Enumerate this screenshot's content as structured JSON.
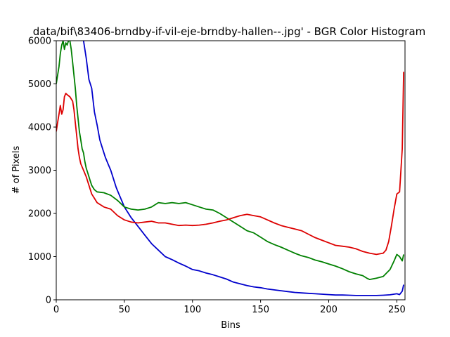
{
  "chart_data": {
    "type": "line",
    "title": "data/bif\\83406-brndby-if-vil-eje-brndby-hallen--.jpg' - BGR Color Histogram",
    "xlabel": "Bins",
    "ylabel": "# of Pixels",
    "xlim": [
      0,
      256
    ],
    "ylim": [
      0,
      6000
    ],
    "xticks": [
      0,
      50,
      100,
      150,
      200,
      250
    ],
    "yticks": [
      0,
      1000,
      2000,
      3000,
      4000,
      5000,
      6000
    ],
    "grid": false,
    "legend": "none",
    "series": [
      {
        "color": "#0000cc",
        "points": [
          [
            20,
            6000
          ],
          [
            22,
            5600
          ],
          [
            24,
            5100
          ],
          [
            26,
            4900
          ],
          [
            28,
            4350
          ],
          [
            30,
            4050
          ],
          [
            32,
            3700
          ],
          [
            34,
            3500
          ],
          [
            36,
            3300
          ],
          [
            38,
            3150
          ],
          [
            40,
            3000
          ],
          [
            42,
            2800
          ],
          [
            44,
            2600
          ],
          [
            46,
            2450
          ],
          [
            48,
            2300
          ],
          [
            50,
            2150
          ],
          [
            55,
            1900
          ],
          [
            60,
            1700
          ],
          [
            65,
            1500
          ],
          [
            70,
            1300
          ],
          [
            75,
            1150
          ],
          [
            80,
            1000
          ],
          [
            85,
            930
          ],
          [
            90,
            850
          ],
          [
            95,
            780
          ],
          [
            100,
            700
          ],
          [
            105,
            670
          ],
          [
            110,
            620
          ],
          [
            115,
            580
          ],
          [
            120,
            530
          ],
          [
            125,
            480
          ],
          [
            130,
            410
          ],
          [
            135,
            370
          ],
          [
            140,
            330
          ],
          [
            145,
            300
          ],
          [
            150,
            280
          ],
          [
            155,
            250
          ],
          [
            160,
            230
          ],
          [
            165,
            210
          ],
          [
            170,
            190
          ],
          [
            175,
            170
          ],
          [
            180,
            160
          ],
          [
            185,
            150
          ],
          [
            190,
            140
          ],
          [
            195,
            130
          ],
          [
            200,
            120
          ],
          [
            205,
            110
          ],
          [
            210,
            110
          ],
          [
            215,
            105
          ],
          [
            220,
            100
          ],
          [
            225,
            100
          ],
          [
            230,
            100
          ],
          [
            235,
            100
          ],
          [
            240,
            105
          ],
          [
            245,
            115
          ],
          [
            250,
            140
          ],
          [
            252,
            120
          ],
          [
            254,
            200
          ],
          [
            255,
            350
          ]
        ]
      },
      {
        "color": "#008000",
        "points": [
          [
            0,
            5000
          ],
          [
            1,
            5200
          ],
          [
            2,
            5400
          ],
          [
            3,
            5700
          ],
          [
            4,
            5900
          ],
          [
            5,
            6000
          ],
          [
            6,
            5800
          ],
          [
            7,
            5950
          ],
          [
            8,
            5900
          ],
          [
            9,
            6000
          ],
          [
            10,
            6000
          ],
          [
            11,
            5800
          ],
          [
            12,
            5500
          ],
          [
            13,
            5200
          ],
          [
            14,
            4900
          ],
          [
            15,
            4500
          ],
          [
            16,
            4200
          ],
          [
            17,
            3900
          ],
          [
            18,
            3700
          ],
          [
            19,
            3500
          ],
          [
            20,
            3400
          ],
          [
            21,
            3200
          ],
          [
            22,
            3050
          ],
          [
            23,
            2950
          ],
          [
            24,
            2850
          ],
          [
            25,
            2750
          ],
          [
            26,
            2650
          ],
          [
            27,
            2600
          ],
          [
            28,
            2550
          ],
          [
            30,
            2500
          ],
          [
            35,
            2480
          ],
          [
            40,
            2420
          ],
          [
            45,
            2300
          ],
          [
            50,
            2150
          ],
          [
            55,
            2100
          ],
          [
            60,
            2080
          ],
          [
            65,
            2100
          ],
          [
            70,
            2150
          ],
          [
            75,
            2250
          ],
          [
            80,
            2230
          ],
          [
            85,
            2250
          ],
          [
            90,
            2230
          ],
          [
            95,
            2250
          ],
          [
            100,
            2200
          ],
          [
            105,
            2150
          ],
          [
            110,
            2100
          ],
          [
            115,
            2080
          ],
          [
            120,
            2000
          ],
          [
            125,
            1900
          ],
          [
            130,
            1800
          ],
          [
            135,
            1700
          ],
          [
            140,
            1600
          ],
          [
            145,
            1550
          ],
          [
            150,
            1450
          ],
          [
            155,
            1350
          ],
          [
            160,
            1280
          ],
          [
            165,
            1220
          ],
          [
            170,
            1150
          ],
          [
            175,
            1080
          ],
          [
            180,
            1020
          ],
          [
            185,
            980
          ],
          [
            190,
            920
          ],
          [
            195,
            880
          ],
          [
            200,
            830
          ],
          [
            205,
            780
          ],
          [
            210,
            720
          ],
          [
            215,
            650
          ],
          [
            220,
            600
          ],
          [
            225,
            560
          ],
          [
            228,
            500
          ],
          [
            230,
            470
          ],
          [
            235,
            500
          ],
          [
            240,
            540
          ],
          [
            245,
            700
          ],
          [
            248,
            900
          ],
          [
            250,
            1050
          ],
          [
            252,
            1000
          ],
          [
            254,
            900
          ],
          [
            255,
            1050
          ]
        ]
      },
      {
        "color": "#dd0000",
        "points": [
          [
            0,
            3900
          ],
          [
            1,
            4100
          ],
          [
            2,
            4300
          ],
          [
            3,
            4500
          ],
          [
            4,
            4300
          ],
          [
            5,
            4400
          ],
          [
            6,
            4700
          ],
          [
            7,
            4780
          ],
          [
            8,
            4750
          ],
          [
            10,
            4700
          ],
          [
            12,
            4600
          ],
          [
            13,
            4400
          ],
          [
            14,
            4100
          ],
          [
            15,
            3800
          ],
          [
            16,
            3500
          ],
          [
            17,
            3300
          ],
          [
            18,
            3150
          ],
          [
            20,
            3000
          ],
          [
            22,
            2850
          ],
          [
            24,
            2650
          ],
          [
            26,
            2450
          ],
          [
            28,
            2350
          ],
          [
            30,
            2250
          ],
          [
            35,
            2150
          ],
          [
            40,
            2100
          ],
          [
            45,
            1950
          ],
          [
            50,
            1850
          ],
          [
            55,
            1800
          ],
          [
            60,
            1780
          ],
          [
            65,
            1800
          ],
          [
            70,
            1820
          ],
          [
            75,
            1780
          ],
          [
            80,
            1780
          ],
          [
            85,
            1750
          ],
          [
            90,
            1720
          ],
          [
            95,
            1730
          ],
          [
            100,
            1720
          ],
          [
            105,
            1730
          ],
          [
            110,
            1750
          ],
          [
            115,
            1780
          ],
          [
            120,
            1820
          ],
          [
            125,
            1850
          ],
          [
            130,
            1900
          ],
          [
            135,
            1950
          ],
          [
            140,
            1980
          ],
          [
            145,
            1950
          ],
          [
            150,
            1920
          ],
          [
            155,
            1850
          ],
          [
            160,
            1780
          ],
          [
            165,
            1720
          ],
          [
            170,
            1680
          ],
          [
            175,
            1640
          ],
          [
            180,
            1600
          ],
          [
            185,
            1520
          ],
          [
            190,
            1440
          ],
          [
            195,
            1380
          ],
          [
            200,
            1320
          ],
          [
            205,
            1260
          ],
          [
            210,
            1240
          ],
          [
            215,
            1220
          ],
          [
            220,
            1180
          ],
          [
            225,
            1120
          ],
          [
            230,
            1080
          ],
          [
            235,
            1050
          ],
          [
            240,
            1080
          ],
          [
            242,
            1150
          ],
          [
            244,
            1350
          ],
          [
            246,
            1700
          ],
          [
            248,
            2100
          ],
          [
            250,
            2450
          ],
          [
            252,
            2500
          ],
          [
            254,
            3500
          ],
          [
            255,
            5280
          ]
        ]
      }
    ]
  }
}
